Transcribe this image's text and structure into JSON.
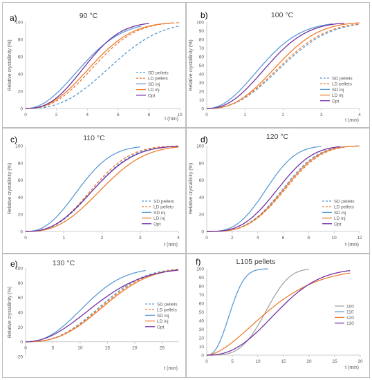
{
  "chart_data": [
    {
      "type": "line",
      "panel_label": "a)",
      "title": "90 °C",
      "xlabel": "t (min)",
      "ylabel": "Relative crystallinity (%)",
      "xlim": [
        0,
        10
      ],
      "ylim": [
        0,
        100
      ],
      "xticks": [
        0,
        2,
        4,
        6,
        8,
        10
      ],
      "yticks": [
        0,
        20,
        40,
        60,
        80,
        100
      ],
      "legend_position": "right",
      "series": [
        {
          "name": "SD pellets",
          "color": "#5b9bd5",
          "dash": "dashed",
          "t_half": 5.6,
          "n": 2.6,
          "t_end": 10
        },
        {
          "name": "LD pellets",
          "color": "#ed7d31",
          "dash": "dashed",
          "t_half": 4.5,
          "n": 2.5,
          "t_end": 10
        },
        {
          "name": "SD inj",
          "color": "#5b9bd5",
          "dash": "solid",
          "t_half": 3.7,
          "n": 2.1,
          "t_end": 7.5
        },
        {
          "name": "LD inj",
          "color": "#ed7d31",
          "dash": "solid",
          "t_half": 4.3,
          "n": 2.4,
          "t_end": 9.5
        },
        {
          "name": "Opt",
          "color": "#7030a0",
          "dash": "solid",
          "t_half": 3.9,
          "n": 2.5,
          "t_end": 8
        }
      ]
    },
    {
      "type": "line",
      "panel_label": "b)",
      "title": "100 °C",
      "xlabel": "t (min)",
      "ylabel": "Relative crystallinity (%)",
      "xlim": [
        0,
        4
      ],
      "ylim": [
        0,
        100
      ],
      "xticks": [
        0,
        1,
        2,
        3,
        4
      ],
      "yticks": [
        0,
        10,
        20,
        30,
        40,
        50,
        60,
        70,
        80,
        90,
        100
      ],
      "legend_position": "right",
      "series": [
        {
          "name": "SD pellets",
          "color": "#5b9bd5",
          "dash": "dashed",
          "t_half": 2.0,
          "n": 2.4,
          "t_end": 4
        },
        {
          "name": "LD pellets",
          "color": "#ed7d31",
          "dash": "dashed",
          "t_half": 1.95,
          "n": 2.4,
          "t_end": 4
        },
        {
          "name": "SD inj",
          "color": "#5b9bd5",
          "dash": "solid",
          "t_half": 1.45,
          "n": 2.1,
          "t_end": 3.3
        },
        {
          "name": "LD inj",
          "color": "#ed7d31",
          "dash": "solid",
          "t_half": 1.85,
          "n": 2.5,
          "t_end": 4
        },
        {
          "name": "Opt",
          "color": "#7030a0",
          "dash": "solid",
          "t_half": 1.6,
          "n": 2.3,
          "t_end": 3.6
        }
      ]
    },
    {
      "type": "line",
      "panel_label": "c)",
      "title": "110 °C",
      "xlabel": "t (min)",
      "ylabel": "Relative crystallinity (%)",
      "xlim": [
        0,
        4
      ],
      "ylim": [
        0,
        100
      ],
      "xticks": [
        0,
        1,
        2,
        3,
        4
      ],
      "yticks": [
        0,
        20,
        40,
        60,
        80,
        100
      ],
      "legend_position": "right",
      "series": [
        {
          "name": "SD pellets",
          "color": "#5b9bd5",
          "dash": "dashed",
          "t_half": 1.8,
          "n": 2.6,
          "t_end": 4
        },
        {
          "name": "LD pellets",
          "color": "#ed7d31",
          "dash": "dashed",
          "t_half": 1.75,
          "n": 2.6,
          "t_end": 4
        },
        {
          "name": "SD inj",
          "color": "#5b9bd5",
          "dash": "solid",
          "t_half": 1.4,
          "n": 2.4,
          "t_end": 3
        },
        {
          "name": "LD inj",
          "color": "#ed7d31",
          "dash": "solid",
          "t_half": 2.0,
          "n": 2.6,
          "t_end": 4
        },
        {
          "name": "Opt",
          "color": "#7030a0",
          "dash": "solid",
          "t_half": 1.8,
          "n": 2.5,
          "t_end": 4
        }
      ]
    },
    {
      "type": "line",
      "panel_label": "d)",
      "title": "120 °C",
      "xlabel": "t (min)",
      "ylabel": "Relative crystallinity (%)",
      "xlim": [
        0,
        12
      ],
      "ylim": [
        0,
        100
      ],
      "xticks": [
        0,
        2,
        4,
        6,
        8,
        10,
        12
      ],
      "yticks": [
        0,
        20,
        40,
        60,
        80,
        100
      ],
      "legend_position": "right",
      "series": [
        {
          "name": "SD pellets",
          "color": "#5b9bd5",
          "dash": "dashed",
          "t_half": 6.0,
          "n": 3.2,
          "t_end": 12
        },
        {
          "name": "LD pellets",
          "color": "#ed7d31",
          "dash": "dashed",
          "t_half": 6.2,
          "n": 3.2,
          "t_end": 12
        },
        {
          "name": "SD inj",
          "color": "#5b9bd5",
          "dash": "solid",
          "t_half": 4.7,
          "n": 3.0,
          "t_end": 9
        },
        {
          "name": "LD inj",
          "color": "#ed7d31",
          "dash": "solid",
          "t_half": 6.1,
          "n": 3.2,
          "t_end": 12
        },
        {
          "name": "Opt",
          "color": "#7030a0",
          "dash": "solid",
          "t_half": 5.6,
          "n": 3.0,
          "t_end": 10.5
        }
      ]
    },
    {
      "type": "line",
      "panel_label": "e)",
      "title": "130 °C",
      "xlabel": "t (min)",
      "ylabel": "Relative crystallinity (%)",
      "xlim": [
        0,
        28
      ],
      "ylim": [
        -20,
        100
      ],
      "xticks": [
        0,
        5,
        10,
        15,
        20,
        25
      ],
      "yticks": [
        -20,
        0,
        20,
        40,
        60,
        80,
        100
      ],
      "legend_position": "right",
      "series": [
        {
          "name": "SD pellets",
          "color": "#5b9bd5",
          "dash": "dashed",
          "t_half": 14.0,
          "n": 2.6,
          "t_end": 28
        },
        {
          "name": "LD pellets",
          "color": "#ed7d31",
          "dash": "dashed",
          "t_half": 14.3,
          "n": 2.6,
          "t_end": 28
        },
        {
          "name": "SD inj",
          "color": "#5b9bd5",
          "dash": "solid",
          "t_half": 11.0,
          "n": 2.3,
          "t_end": 22
        },
        {
          "name": "LD inj",
          "color": "#ed7d31",
          "dash": "solid",
          "t_half": 14.6,
          "n": 2.6,
          "t_end": 28
        },
        {
          "name": "Opt",
          "color": "#7030a0",
          "dash": "solid",
          "t_half": 12.8,
          "n": 2.1,
          "t_end": 28
        }
      ]
    },
    {
      "type": "line",
      "panel_label": "f)",
      "title": "L105 pellets",
      "xlabel": "t (min)",
      "ylabel": "",
      "xlim": [
        0,
        30
      ],
      "ylim": [
        0,
        100
      ],
      "xticks": [
        0,
        5,
        10,
        15,
        20,
        25,
        30
      ],
      "yticks": [
        0,
        10,
        20,
        30,
        40,
        50,
        60,
        70,
        80,
        90,
        100
      ],
      "legend_position": "right",
      "series": [
        {
          "name": "100",
          "color": "#a5a5a5",
          "dash": "solid",
          "t_half": 11.5,
          "n": 3.6,
          "t_end": 20
        },
        {
          "name": "110",
          "color": "#5b9bd5",
          "dash": "solid",
          "t_half": 4.6,
          "n": 2.4,
          "t_end": 12
        },
        {
          "name": "120",
          "color": "#ed7d31",
          "dash": "solid",
          "t_half": 11.8,
          "n": 1.7,
          "t_end": 28
        },
        {
          "name": "130",
          "color": "#7030a0",
          "dash": "solid",
          "t_half": 13.7,
          "n": 2.4,
          "t_end": 28
        }
      ]
    }
  ]
}
